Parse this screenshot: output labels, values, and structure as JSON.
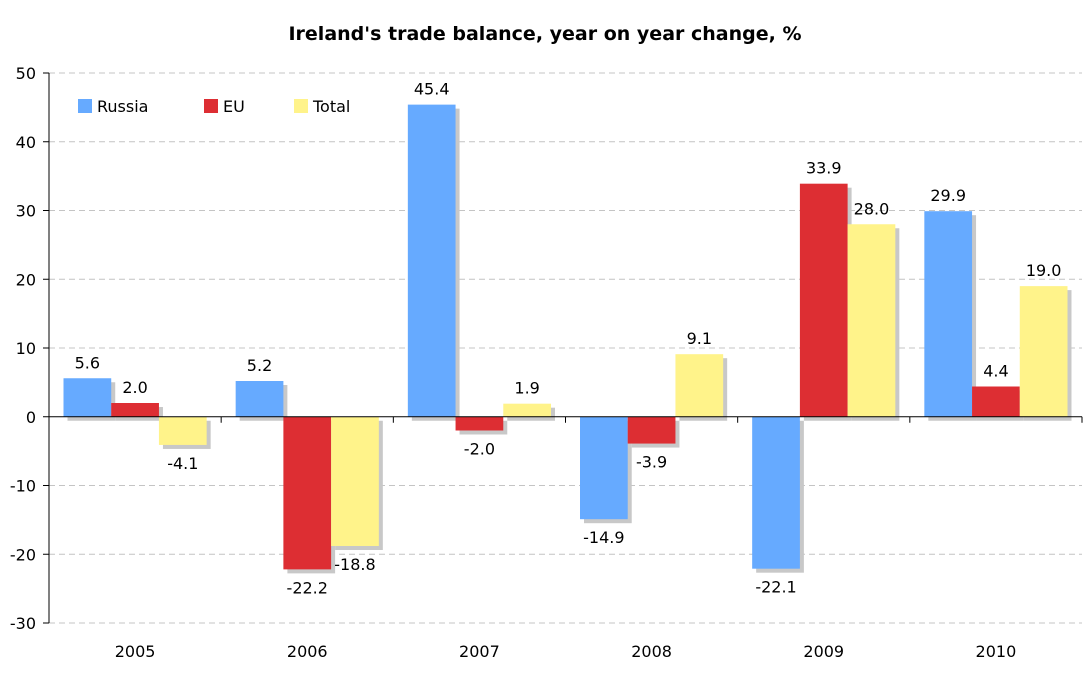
{
  "chart_data": {
    "type": "bar",
    "title": "Ireland's trade balance, year on year change, %",
    "xlabel": "",
    "ylabel": "",
    "categories": [
      "2005",
      "2006",
      "2007",
      "2008",
      "2009",
      "2010"
    ],
    "series": [
      {
        "name": "Russia",
        "color": "#66aaff",
        "values": [
          5.6,
          5.2,
          45.4,
          -14.9,
          -22.1,
          29.9
        ],
        "labels": [
          "5.6",
          "5.2",
          "45.4",
          "-14.9",
          "-22.1",
          "29.9"
        ]
      },
      {
        "name": "EU",
        "color": "#dd2e33",
        "values": [
          2.0,
          -22.2,
          -2.0,
          -3.9,
          33.9,
          4.4
        ],
        "labels": [
          "2.0",
          "-22.2",
          "-2.0",
          "-3.9",
          "33.9",
          "4.4"
        ]
      },
      {
        "name": "Total",
        "color": "#fff38a",
        "values": [
          -4.1,
          -18.8,
          1.9,
          9.1,
          28.0,
          19.0
        ],
        "labels": [
          "-4.1",
          "-18.8",
          "1.9",
          "9.1",
          "28.0",
          "19.0"
        ]
      }
    ],
    "ylim": [
      -30,
      50
    ],
    "yticks": [
      "-30",
      "-20",
      "-10",
      "0",
      "10",
      "20",
      "30",
      "40",
      "50"
    ],
    "grid": true,
    "legend_position": "top-left",
    "data_labels": true
  }
}
